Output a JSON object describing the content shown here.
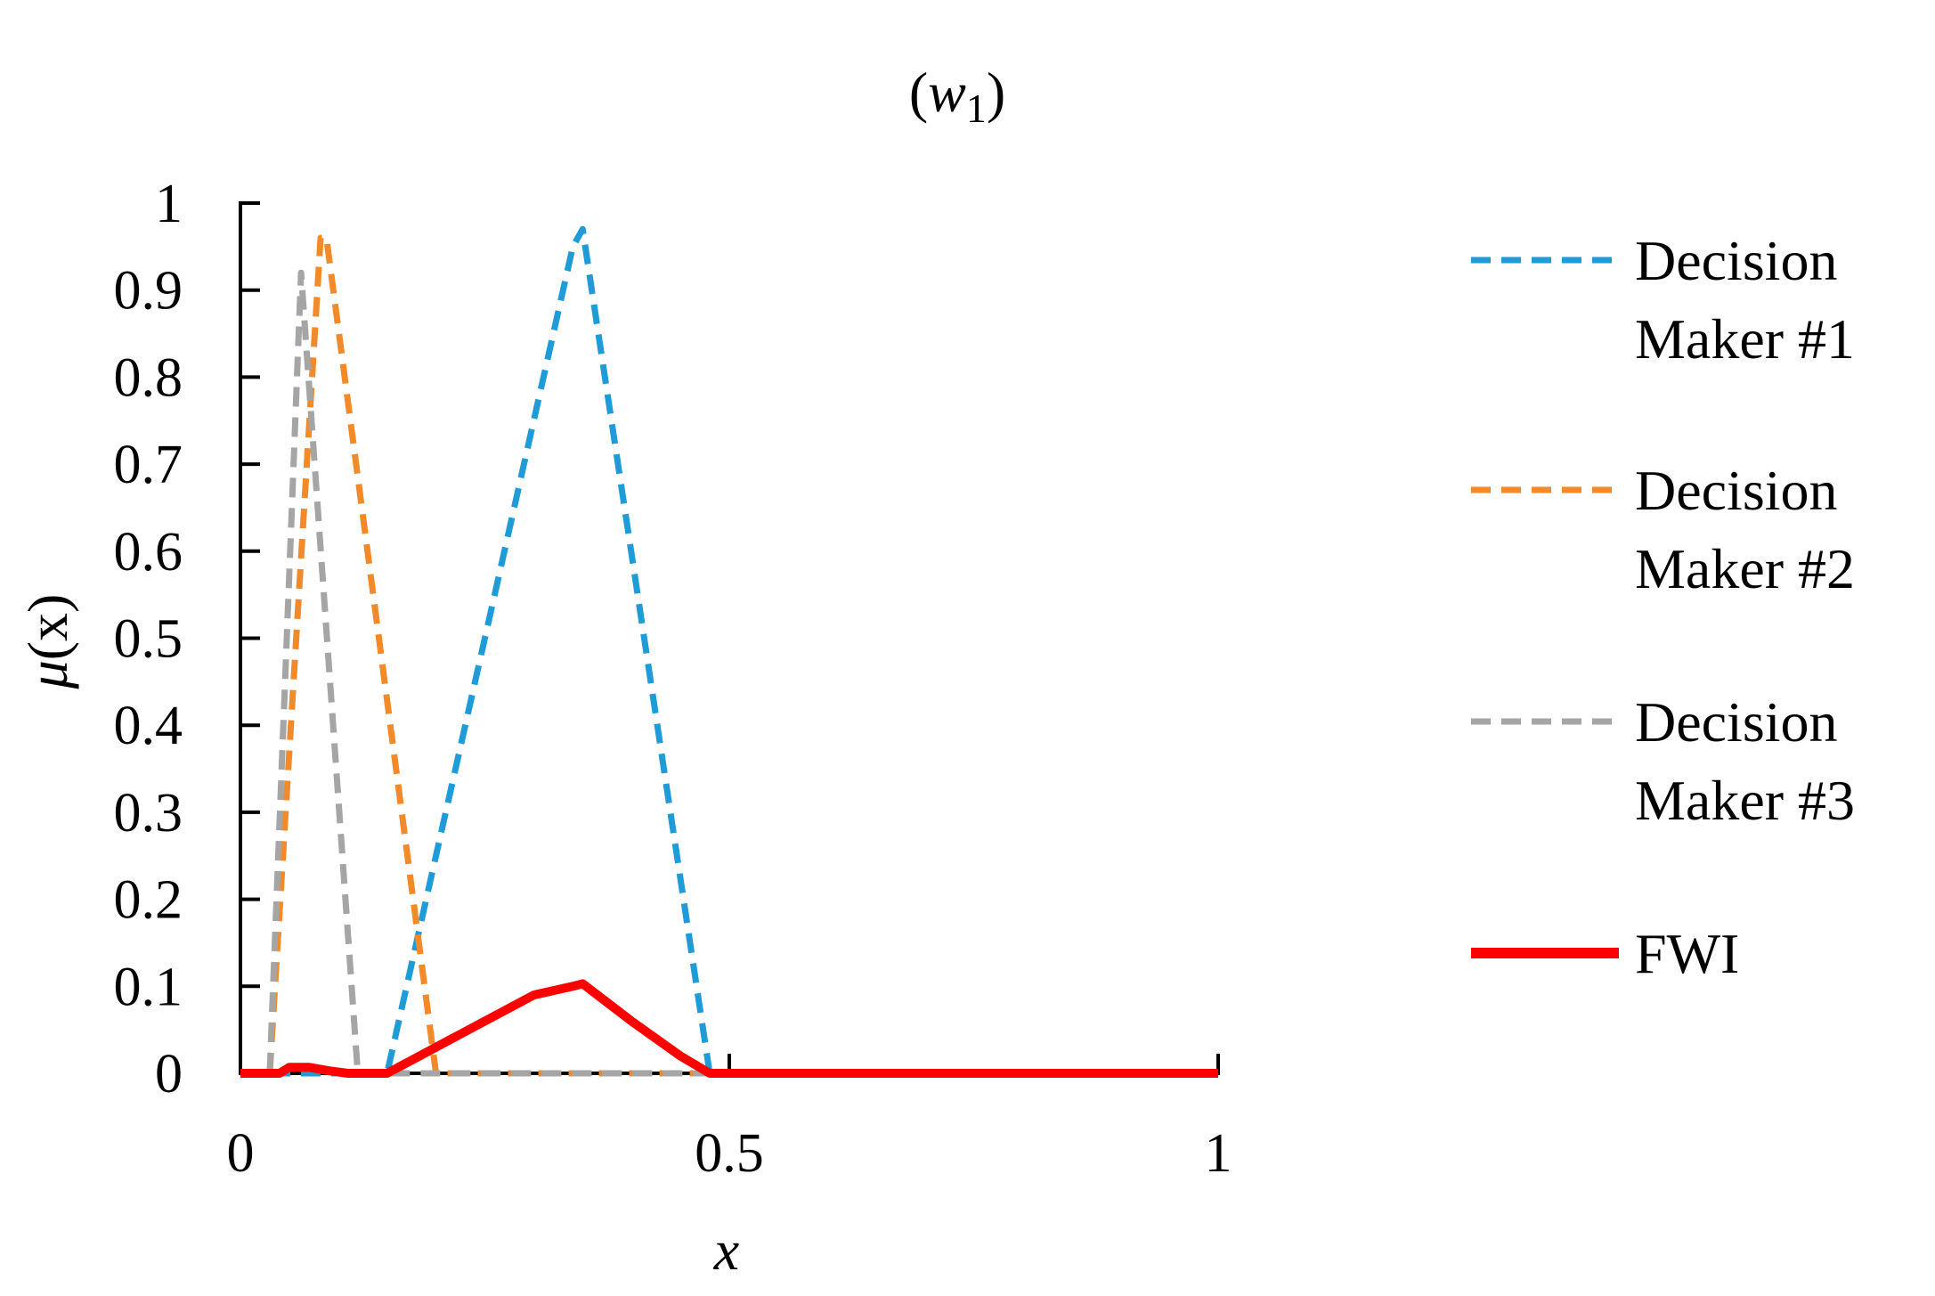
{
  "chart_data": {
    "type": "line",
    "title_prefix": "(",
    "title_var": "w",
    "title_sub": "1",
    "title_suffix": ")",
    "xlabel": "x",
    "ylabel_func": "μ",
    "ylabel_arg": "(x)",
    "xlim": [
      0,
      1
    ],
    "ylim": [
      0,
      1
    ],
    "x_ticks": [
      0,
      0.5,
      1
    ],
    "x_tick_labels": [
      "0",
      "0.5",
      "1"
    ],
    "y_ticks": [
      0,
      0.1,
      0.2,
      0.3,
      0.4,
      0.5,
      0.6,
      0.7,
      0.8,
      0.9,
      1
    ],
    "y_tick_labels": [
      "0",
      "0.1",
      "0.2",
      "0.3",
      "0.4",
      "0.5",
      "0.6",
      "0.7",
      "0.8",
      "0.9",
      "1"
    ],
    "legend_position": "right",
    "grid": false,
    "series": [
      {
        "name_lines": [
          "Decision",
          "Maker #1"
        ],
        "color": "#1F9BD7",
        "dash": true,
        "x": [
          0,
          0.15,
          0.34,
          0.35,
          0.48,
          1
        ],
        "y": [
          0,
          0,
          0.95,
          0.97,
          0,
          0
        ]
      },
      {
        "name_lines": [
          "Decision",
          "Maker #2"
        ],
        "color": "#F28A2A",
        "dash": true,
        "x": [
          0,
          0.03,
          0.082,
          0.088,
          0.2,
          1
        ],
        "y": [
          0,
          0,
          0.96,
          0.96,
          0,
          0
        ]
      },
      {
        "name_lines": [
          "Decision",
          "Maker #3"
        ],
        "color": "#A5A5A5",
        "dash": true,
        "x": [
          0,
          0.03,
          0.062,
          0.12,
          1
        ],
        "y": [
          0,
          0,
          0.92,
          0,
          0
        ]
      },
      {
        "name_lines": [
          "FWI"
        ],
        "color": "#FF0000",
        "dash": false,
        "x": [
          0,
          0.04,
          0.05,
          0.07,
          0.09,
          0.11,
          0.15,
          0.2,
          0.25,
          0.3,
          0.34,
          0.35,
          0.4,
          0.45,
          0.48,
          0.5,
          1
        ],
        "y": [
          0,
          0,
          0.007,
          0.007,
          0.003,
          0,
          0,
          0.03,
          0.06,
          0.09,
          0.1,
          0.103,
          0.06,
          0.02,
          0,
          0,
          0
        ]
      }
    ]
  }
}
